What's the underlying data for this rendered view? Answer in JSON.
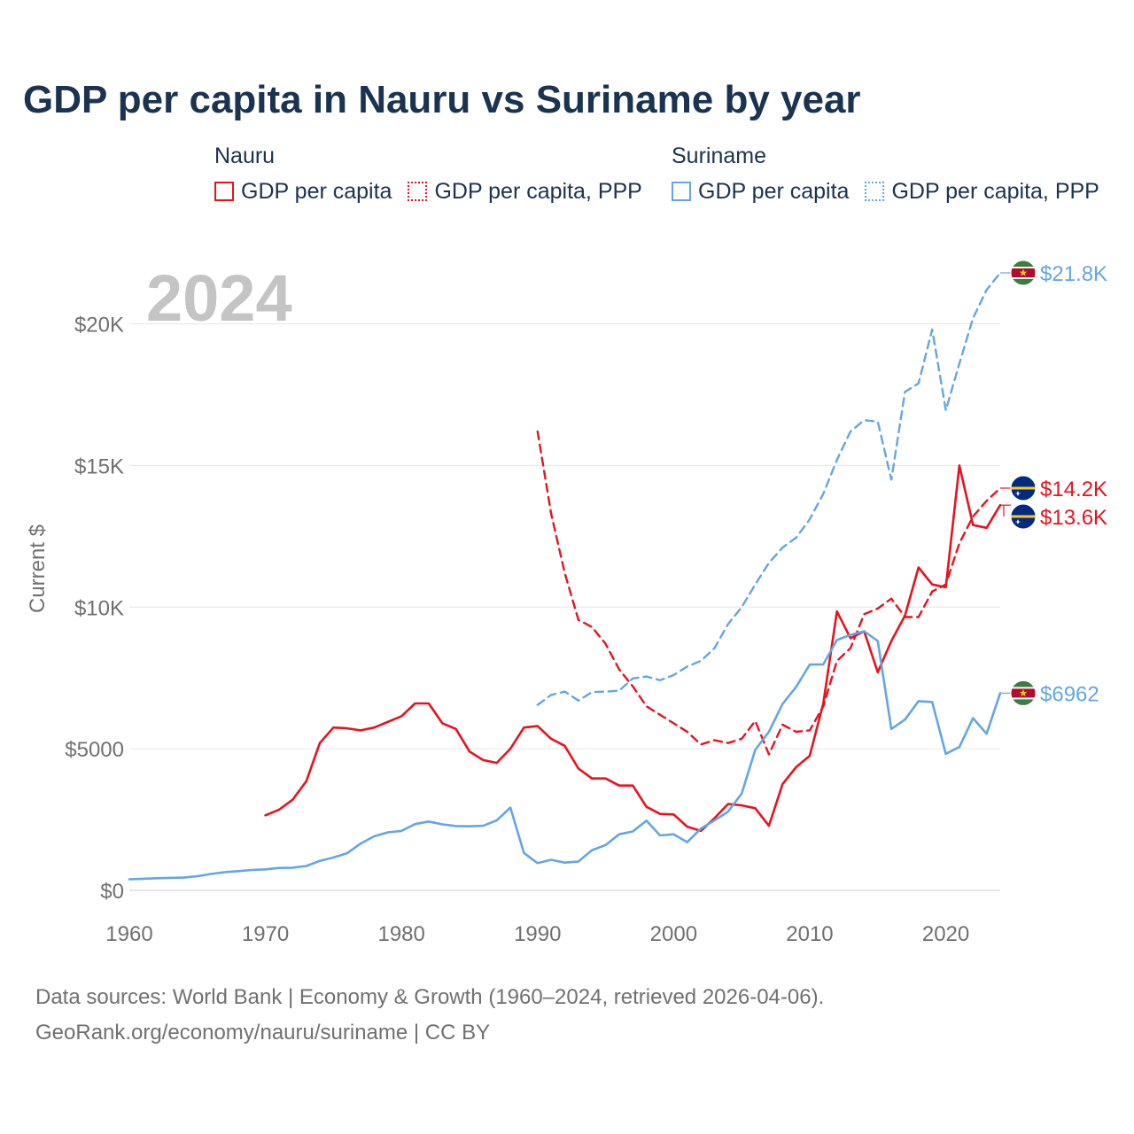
{
  "title": "GDP per capita in Nauru vs Suriname by year",
  "legend": [
    {
      "country": "Nauru",
      "items": [
        {
          "label": "GDP per capita",
          "style": "solid",
          "color": "#e8121d"
        },
        {
          "label": "GDP per capita, PPP",
          "style": "dotted",
          "color": "#e8121d"
        }
      ]
    },
    {
      "country": "Suriname",
      "items": [
        {
          "label": "GDP per capita",
          "style": "solid",
          "color": "#62a6e6"
        },
        {
          "label": "GDP per capita, PPP",
          "style": "dotted",
          "color": "#62a6e6"
        }
      ]
    }
  ],
  "footer": {
    "line1": "Data sources: World Bank | Economy & Growth (1960–2024, retrieved 2026-04-06).",
    "line2": "GeoRank.org/economy/nauru/suriname | CC BY"
  },
  "chart_data": {
    "type": "line",
    "title": "GDP per capita in Nauru vs Suriname by year",
    "year_label": "2024",
    "ylabel": "Current $",
    "xlabel": "",
    "xlim": [
      1960,
      2024
    ],
    "ylim": [
      0,
      22000
    ],
    "grid": true,
    "x_ticks": [
      1960,
      1970,
      1980,
      1990,
      2000,
      2010,
      2020
    ],
    "x_tick_labels": [
      "1960",
      "1970",
      "1980",
      "1990",
      "2000",
      "2010",
      "2020"
    ],
    "y_ticks": [
      0,
      5000,
      10000,
      15000,
      20000
    ],
    "y_tick_labels": [
      "$0",
      "$5000",
      "$10K",
      "$15K",
      "$20K"
    ],
    "series": [
      {
        "name": "Nauru GDP per capita",
        "country": "Nauru",
        "color": "#e8121d",
        "dashed": false,
        "end_label": "$13.6K",
        "end_value": 13600,
        "flag": "nauru",
        "x": [
          1970,
          1971,
          1972,
          1973,
          1974,
          1975,
          1976,
          1977,
          1978,
          1979,
          1980,
          1981,
          1982,
          1983,
          1984,
          1985,
          1986,
          1987,
          1988,
          1989,
          1990,
          1991,
          1992,
          1993,
          1994,
          1995,
          1996,
          1997,
          1998,
          1999,
          2000,
          2001,
          2002,
          2003,
          2004,
          2005,
          2006,
          2007,
          2008,
          2009,
          2010,
          2011,
          2012,
          2013,
          2014,
          2015,
          2016,
          2017,
          2018,
          2019,
          2020,
          2021,
          2022,
          2023,
          2024
        ],
        "values": [
          2650,
          2850,
          3200,
          3850,
          5200,
          5750,
          5720,
          5650,
          5750,
          5950,
          6150,
          6600,
          6600,
          5900,
          5700,
          4900,
          4600,
          4500,
          5000,
          5750,
          5800,
          5350,
          5100,
          4300,
          3950,
          3950,
          3700,
          3700,
          2950,
          2700,
          2680,
          2250,
          2100,
          2550,
          3050,
          3000,
          2900,
          2280,
          3750,
          4350,
          4750,
          6600,
          9850,
          8900,
          9150,
          7700,
          8800,
          9700,
          11400,
          10800,
          10700,
          15000,
          12900,
          12800,
          13600
        ]
      },
      {
        "name": "Nauru GDP per capita, PPP",
        "country": "Nauru",
        "color": "#e8121d",
        "dashed": true,
        "end_label": "$14.2K",
        "end_value": 14200,
        "flag": "nauru",
        "x": [
          1990,
          1991,
          1992,
          1993,
          1994,
          1995,
          1996,
          1997,
          1998,
          1999,
          2000,
          2001,
          2002,
          2003,
          2004,
          2005,
          2006,
          2007,
          2008,
          2009,
          2010,
          2011,
          2012,
          2013,
          2014,
          2015,
          2016,
          2017,
          2018,
          2019,
          2020,
          2021,
          2022,
          2023,
          2024
        ],
        "values": [
          16200,
          13300,
          11200,
          9550,
          9300,
          8700,
          7800,
          7200,
          6500,
          6200,
          5900,
          5600,
          5150,
          5300,
          5200,
          5350,
          5980,
          4800,
          5850,
          5600,
          5650,
          6500,
          8100,
          8550,
          9750,
          9950,
          10300,
          9650,
          9650,
          10550,
          10800,
          12250,
          13200,
          13750,
          14200
        ]
      },
      {
        "name": "Suriname GDP per capita",
        "country": "Suriname",
        "color": "#62a6e6",
        "dashed": false,
        "end_label": "$6962",
        "end_value": 6962,
        "flag": "suriname",
        "x": [
          1960,
          1961,
          1962,
          1963,
          1964,
          1965,
          1966,
          1967,
          1968,
          1969,
          1970,
          1971,
          1972,
          1973,
          1974,
          1975,
          1976,
          1977,
          1978,
          1979,
          1980,
          1981,
          1982,
          1983,
          1984,
          1985,
          1986,
          1987,
          1988,
          1989,
          1990,
          1991,
          1992,
          1993,
          1994,
          1995,
          1996,
          1997,
          1998,
          1999,
          2000,
          2001,
          2002,
          2003,
          2004,
          2005,
          2006,
          2007,
          2008,
          2009,
          2010,
          2011,
          2012,
          2013,
          2014,
          2015,
          2016,
          2017,
          2018,
          2019,
          2020,
          2021,
          2022,
          2023,
          2024
        ],
        "values": [
          390,
          410,
          430,
          440,
          450,
          500,
          580,
          640,
          680,
          720,
          740,
          790,
          800,
          860,
          1040,
          1160,
          1310,
          1650,
          1910,
          2050,
          2100,
          2340,
          2430,
          2330,
          2270,
          2260,
          2280,
          2470,
          2920,
          1320,
          960,
          1080,
          980,
          1020,
          1420,
          1600,
          1980,
          2080,
          2460,
          1940,
          1980,
          1700,
          2180,
          2470,
          2780,
          3420,
          4960,
          5600,
          6580,
          7180,
          7970,
          7980,
          8840,
          9020,
          9150,
          8800,
          5700,
          6030,
          6680,
          6650,
          4820,
          5060,
          6080,
          5530,
          6962
        ]
      },
      {
        "name": "Suriname GDP per capita, PPP",
        "country": "Suriname",
        "color": "#62a6e6",
        "dashed": true,
        "end_label": "$21.8K",
        "end_value": 21800,
        "flag": "suriname",
        "x": [
          1990,
          1991,
          1992,
          1993,
          1994,
          1995,
          1996,
          1997,
          1998,
          1999,
          2000,
          2001,
          2002,
          2003,
          2004,
          2005,
          2006,
          2007,
          2008,
          2009,
          2010,
          2011,
          2012,
          2013,
          2014,
          2015,
          2016,
          2017,
          2018,
          2019,
          2020,
          2021,
          2022,
          2023,
          2024
        ],
        "values": [
          6550,
          6900,
          7020,
          6700,
          7000,
          7020,
          7050,
          7480,
          7550,
          7420,
          7600,
          7900,
          8100,
          8550,
          9400,
          10000,
          10800,
          11560,
          12100,
          12450,
          13100,
          14000,
          15200,
          16200,
          16600,
          16550,
          14500,
          17600,
          17900,
          19800,
          16950,
          18600,
          20200,
          21200,
          21800
        ]
      }
    ]
  }
}
